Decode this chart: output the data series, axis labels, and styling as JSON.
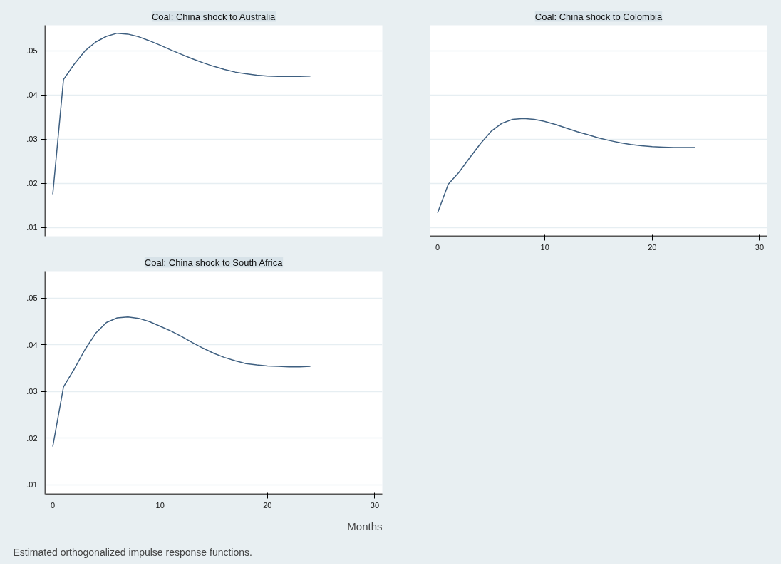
{
  "chart_data": [
    {
      "type": "line",
      "title": "Coal: China shock to Australia",
      "x": [
        0,
        1,
        2,
        3,
        4,
        5,
        6,
        7,
        8,
        9,
        10,
        11,
        12,
        13,
        14,
        15,
        16,
        17,
        18,
        19,
        20,
        21,
        22,
        23,
        24
      ],
      "series": [
        {
          "color": "#3e5f80",
          "values": [
            0.0175,
            0.0435,
            0.047,
            0.05,
            0.052,
            0.0533,
            0.054,
            0.0538,
            0.0532,
            0.0523,
            0.0513,
            0.0502,
            0.0492,
            0.0482,
            0.0473,
            0.0465,
            0.0458,
            0.0452,
            0.0448,
            0.0445,
            0.0443,
            0.0442,
            0.0442,
            0.0442,
            0.0443
          ]
        }
      ],
      "xlim": [
        -0.7,
        30.7
      ],
      "xticks": [
        0,
        10,
        20,
        30
      ],
      "ylim": [
        0.008,
        0.0558
      ],
      "yticks": [
        {
          "value": 0.01,
          "label": ".01"
        },
        {
          "value": 0.02,
          "label": ".02"
        },
        {
          "value": 0.03,
          "label": ".03"
        },
        {
          "value": 0.04,
          "label": ".04"
        },
        {
          "value": 0.05,
          "label": ".05"
        }
      ],
      "tick_labels": "y",
      "grid": "y"
    },
    {
      "type": "line",
      "title": "Coal: China shock to Colombia",
      "x": [
        0,
        1,
        2,
        3,
        4,
        5,
        6,
        7,
        8,
        9,
        10,
        11,
        12,
        13,
        14,
        15,
        16,
        17,
        18,
        19,
        20,
        21,
        22,
        23,
        24
      ],
      "series": [
        {
          "color": "#3e5f80",
          "values": [
            0.0133,
            0.0198,
            0.0225,
            0.0258,
            0.029,
            0.0318,
            0.0336,
            0.0345,
            0.0347,
            0.0345,
            0.034,
            0.0333,
            0.0325,
            0.0317,
            0.031,
            0.0303,
            0.0297,
            0.0292,
            0.0288,
            0.0285,
            0.0283,
            0.0282,
            0.0281,
            0.0281,
            0.0281
          ]
        }
      ],
      "xlim": [
        -0.7,
        30.7
      ],
      "xticks": [
        0,
        10,
        20,
        30
      ],
      "ylim": [
        0.008,
        0.0558
      ],
      "yticks": [
        {
          "value": 0.01,
          "label": null
        },
        {
          "value": 0.02,
          "label": null
        },
        {
          "value": 0.03,
          "label": null
        },
        {
          "value": 0.04,
          "label": null
        },
        {
          "value": 0.05,
          "label": null
        }
      ],
      "tick_labels": "x",
      "grid": "y"
    },
    {
      "type": "line",
      "title": "Coal: China shock to South Africa",
      "xlabel": "Months",
      "x": [
        0,
        1,
        2,
        3,
        4,
        5,
        6,
        7,
        8,
        9,
        10,
        11,
        12,
        13,
        14,
        15,
        16,
        17,
        18,
        19,
        20,
        21,
        22,
        23,
        24
      ],
      "series": [
        {
          "color": "#3e5f80",
          "values": [
            0.0182,
            0.031,
            0.0348,
            0.039,
            0.0425,
            0.0448,
            0.0458,
            0.046,
            0.0457,
            0.045,
            0.044,
            0.043,
            0.0418,
            0.0405,
            0.0393,
            0.0382,
            0.0373,
            0.0366,
            0.036,
            0.0357,
            0.0355,
            0.0354,
            0.0353,
            0.0353,
            0.0354
          ]
        }
      ],
      "xlim": [
        -0.7,
        30.7
      ],
      "xticks": [
        0,
        10,
        20,
        30
      ],
      "ylim": [
        0.008,
        0.0558
      ],
      "yticks": [
        {
          "value": 0.01,
          "label": ".01"
        },
        {
          "value": 0.02,
          "label": ".02"
        },
        {
          "value": 0.03,
          "label": ".03"
        },
        {
          "value": 0.04,
          "label": ".04"
        },
        {
          "value": 0.05,
          "label": ".05"
        }
      ],
      "grid": "y",
      "annotations": [
        "Estimated orthogonalized impulse response functions."
      ]
    }
  ]
}
